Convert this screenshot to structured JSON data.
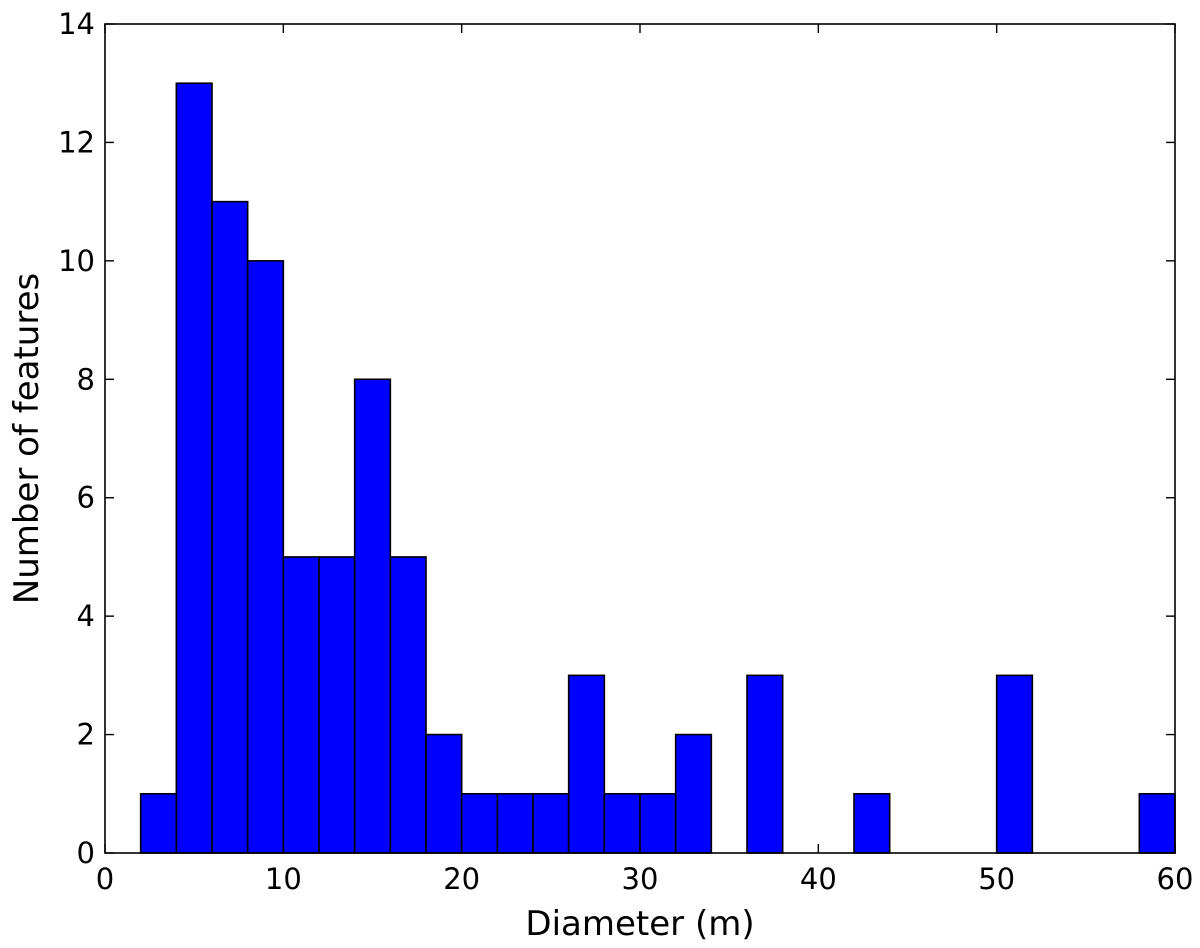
{
  "chart_data": {
    "type": "bar",
    "subtype": "histogram",
    "xlabel": "Diameter (m)",
    "ylabel": "Number of features",
    "xlim": [
      0,
      60
    ],
    "ylim": [
      0,
      14
    ],
    "xticks": [
      0,
      10,
      20,
      30,
      40,
      50,
      60
    ],
    "yticks": [
      0,
      2,
      4,
      6,
      8,
      10,
      12,
      14
    ],
    "bar_color": "#0000ff",
    "edge_color": "#000000",
    "grid": false,
    "bins": [
      {
        "x0": 2,
        "x1": 4,
        "count": 1
      },
      {
        "x0": 4,
        "x1": 6,
        "count": 13
      },
      {
        "x0": 6,
        "x1": 8,
        "count": 11
      },
      {
        "x0": 8,
        "x1": 10,
        "count": 10
      },
      {
        "x0": 10,
        "x1": 12,
        "count": 5
      },
      {
        "x0": 12,
        "x1": 14,
        "count": 5
      },
      {
        "x0": 14,
        "x1": 16,
        "count": 8
      },
      {
        "x0": 16,
        "x1": 18,
        "count": 5
      },
      {
        "x0": 18,
        "x1": 20,
        "count": 2
      },
      {
        "x0": 20,
        "x1": 22,
        "count": 1
      },
      {
        "x0": 22,
        "x1": 24,
        "count": 1
      },
      {
        "x0": 24,
        "x1": 26,
        "count": 1
      },
      {
        "x0": 26,
        "x1": 28,
        "count": 3
      },
      {
        "x0": 28,
        "x1": 30,
        "count": 1
      },
      {
        "x0": 30,
        "x1": 32,
        "count": 1
      },
      {
        "x0": 32,
        "x1": 34,
        "count": 2
      },
      {
        "x0": 34,
        "x1": 36,
        "count": 0
      },
      {
        "x0": 36,
        "x1": 38,
        "count": 3
      },
      {
        "x0": 38,
        "x1": 40,
        "count": 0
      },
      {
        "x0": 40,
        "x1": 42,
        "count": 0
      },
      {
        "x0": 42,
        "x1": 44,
        "count": 1
      },
      {
        "x0": 44,
        "x1": 46,
        "count": 0
      },
      {
        "x0": 46,
        "x1": 48,
        "count": 0
      },
      {
        "x0": 48,
        "x1": 50,
        "count": 0
      },
      {
        "x0": 50,
        "x1": 52,
        "count": 3
      },
      {
        "x0": 52,
        "x1": 54,
        "count": 0
      },
      {
        "x0": 54,
        "x1": 56,
        "count": 0
      },
      {
        "x0": 56,
        "x1": 58,
        "count": 0
      },
      {
        "x0": 58,
        "x1": 60,
        "count": 1
      }
    ]
  }
}
